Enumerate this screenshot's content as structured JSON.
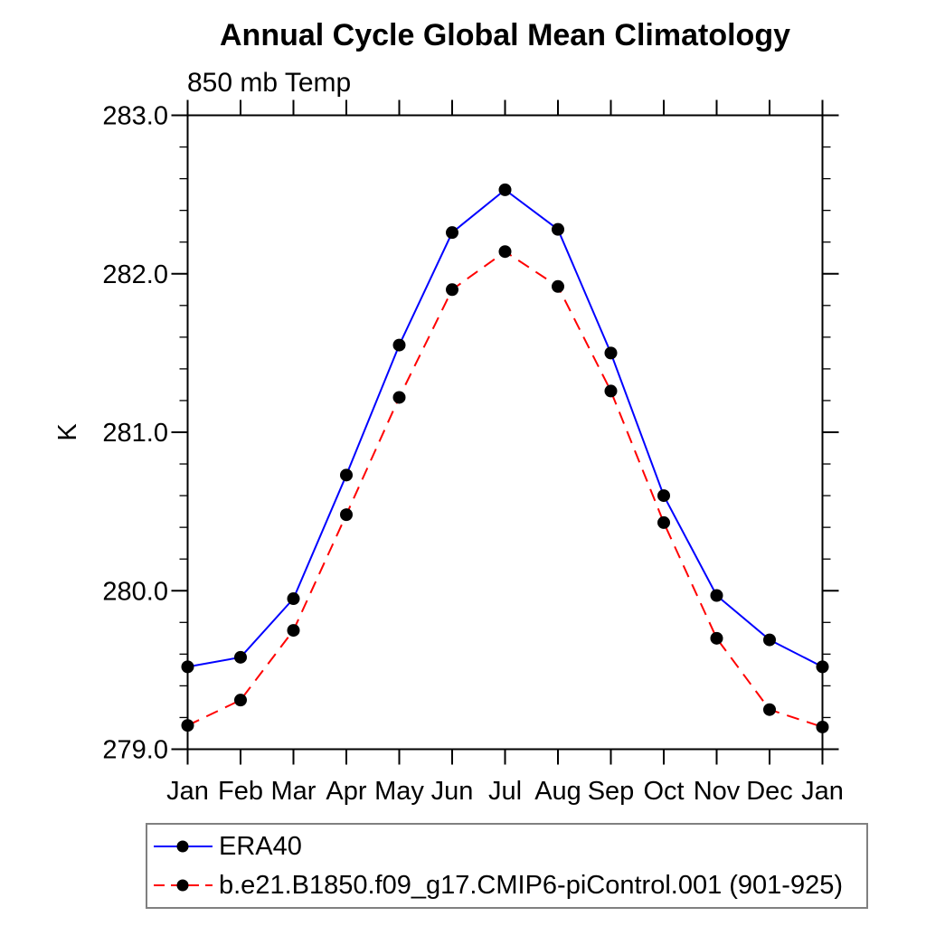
{
  "page": {
    "title": "Annual Cycle Global Mean Climatology",
    "subtitle": "850 mb Temp"
  },
  "chart_data": {
    "type": "line",
    "title": "Annual Cycle Global Mean Climatology",
    "subtitle": "850 mb Temp",
    "xlabel": "",
    "ylabel": "K",
    "categories": [
      "Jan",
      "Feb",
      "Mar",
      "Apr",
      "May",
      "Jun",
      "Jul",
      "Aug",
      "Sep",
      "Oct",
      "Nov",
      "Dec",
      "Jan"
    ],
    "ylim": [
      279.0,
      283.0
    ],
    "yticks_major": [
      279.0,
      280.0,
      281.0,
      282.0,
      283.0
    ],
    "ytick_labels": [
      "279.0",
      "280.0",
      "281.0",
      "282.0",
      "283.0"
    ],
    "ytick_minor_step": 0.2,
    "grid": false,
    "legend_position": "bottom-left-box",
    "series": [
      {
        "name": "ERA40",
        "color": "#0000ff",
        "line_style": "solid",
        "marker": "circle",
        "marker_color": "#000000",
        "values": [
          279.52,
          279.58,
          279.95,
          280.73,
          281.55,
          282.26,
          282.53,
          282.28,
          281.5,
          280.6,
          279.97,
          279.69,
          279.52
        ]
      },
      {
        "name": "b.e21.B1850.f09_g17.CMIP6-piControl.001 (901-925)",
        "color": "#ff0000",
        "line_style": "dashed",
        "marker": "circle",
        "marker_color": "#000000",
        "values": [
          279.15,
          279.31,
          279.75,
          280.48,
          281.22,
          281.9,
          282.14,
          281.92,
          281.26,
          280.43,
          279.7,
          279.25,
          279.14
        ]
      }
    ]
  }
}
